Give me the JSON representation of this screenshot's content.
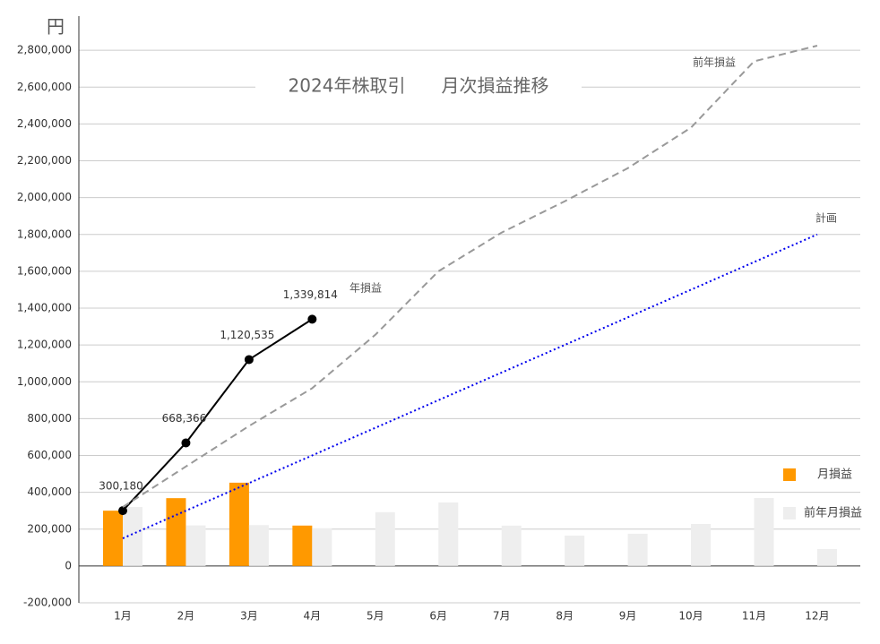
{
  "chart_data": {
    "type": "combo",
    "title": "2024年株取引　　月次損益推移",
    "y_unit": "円",
    "categories": [
      "1月",
      "2月",
      "3月",
      "4月",
      "5月",
      "6月",
      "7月",
      "8月",
      "9月",
      "10月",
      "11月",
      "12月"
    ],
    "ylim": [
      -200000,
      3000000
    ],
    "yticks": [
      {
        "value": -200000,
        "label": "-200,000"
      },
      0,
      {
        "value": 200000,
        "label": "200,000"
      },
      {
        "value": 400000,
        "label": "400,000"
      },
      {
        "value": 600000,
        "label": "600,000"
      },
      {
        "value": 800000,
        "label": "800,000"
      },
      {
        "value": 1000000,
        "label": "1,000,000"
      },
      {
        "value": 1200000,
        "label": "1,200,000"
      },
      {
        "value": 1400000,
        "label": "1,400,000"
      },
      {
        "value": 1600000,
        "label": "1,600,000"
      },
      {
        "value": 1800000,
        "label": "1,800,000"
      },
      {
        "value": 2000000,
        "label": "2,000,000"
      },
      {
        "value": 2200000,
        "label": "2,200,000"
      },
      {
        "value": 2400000,
        "label": "2,400,000"
      },
      {
        "value": 2600000,
        "label": "2,600,000"
      },
      {
        "value": 2800000,
        "label": "2,800,000"
      }
    ],
    "grid": true,
    "legend": "right",
    "series": [
      {
        "name": "月損益",
        "type": "bar",
        "color": "#ff9900",
        "values": [
          300180,
          368186,
          452169,
          219279,
          null,
          null,
          null,
          null,
          null,
          null,
          null,
          null
        ]
      },
      {
        "name": "前年月損益",
        "type": "bar",
        "color": "#eeeeee",
        "values": [
          320000,
          220000,
          222000,
          205000,
          292000,
          345000,
          219000,
          165000,
          175000,
          228000,
          369000,
          92000
        ]
      },
      {
        "name": "年損益",
        "type": "line",
        "color": "#000000",
        "dash": "solid",
        "markers": true,
        "values": [
          300180,
          668366,
          1120535,
          1339814,
          null,
          null,
          null,
          null,
          null,
          null,
          null,
          null
        ],
        "value_labels": [
          "300,180",
          "668,366",
          "1,120,535",
          "1,339,814",
          null,
          null,
          null,
          null,
          null,
          null,
          null,
          null
        ]
      },
      {
        "name": "前年損益",
        "type": "line",
        "color": "#999999",
        "dash": "dashed",
        "values": [
          320000,
          540000,
          760000,
          965000,
          1255000,
          1600000,
          1810000,
          1980000,
          2160000,
          2380000,
          2740000,
          2825000
        ]
      },
      {
        "name": "計画",
        "type": "line",
        "color": "#0000ee",
        "dash": "dotted",
        "values": [
          150000,
          300000,
          450000,
          600000,
          750000,
          900000,
          1050000,
          1200000,
          1350000,
          1500000,
          1650000,
          1800000
        ]
      }
    ]
  }
}
